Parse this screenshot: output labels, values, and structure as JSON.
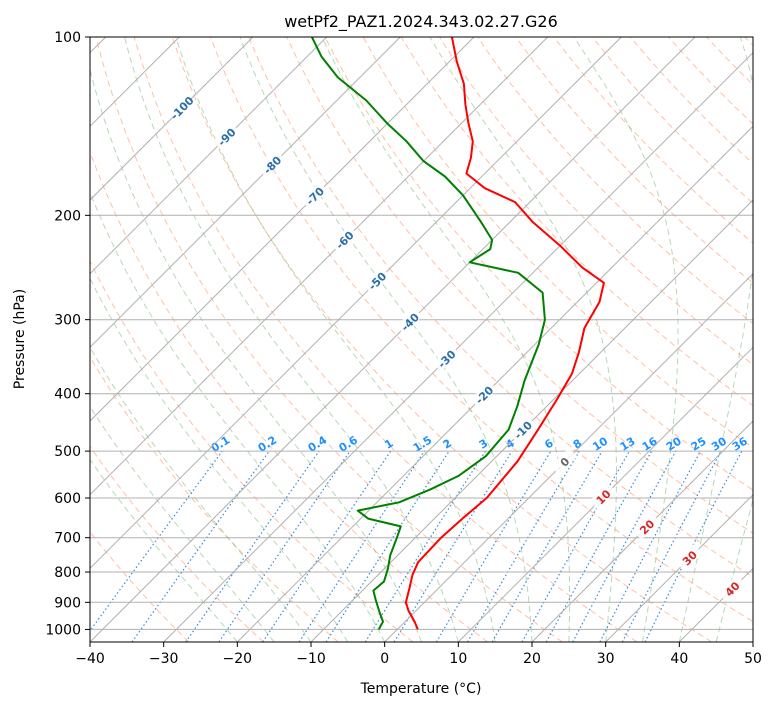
{
  "chart_data": {
    "type": "line",
    "title": "wetPf2_PAZ1.2024.343.02.27.G26",
    "xlabel": "Temperature (°C)",
    "ylabel": "Pressure (hPa)",
    "xlim": [
      -40,
      50
    ],
    "ylim": [
      1050,
      100
    ],
    "y_scale": "log",
    "x_ticks": [
      -40,
      -30,
      -20,
      -10,
      0,
      10,
      20,
      30,
      40,
      50
    ],
    "x_tick_labels": [
      "−40",
      "−30",
      "−20",
      "−10",
      "0",
      "10",
      "20",
      "30",
      "40",
      "50"
    ],
    "y_ticks": [
      100,
      200,
      300,
      400,
      500,
      600,
      700,
      800,
      900,
      1000
    ],
    "y_tick_labels": [
      "100",
      "200",
      "300",
      "400",
      "500",
      "600",
      "700",
      "800",
      "900",
      "1000"
    ],
    "grid": true,
    "skew": true,
    "series": [
      {
        "color": "#ff0000",
        "points": [
          [
            2.8,
            1000
          ],
          [
            1.3,
            970
          ],
          [
            -1,
            930
          ],
          [
            -2.5,
            900
          ],
          [
            -4,
            850
          ],
          [
            -5.3,
            810
          ],
          [
            -6.3,
            770
          ],
          [
            -6.5,
            700
          ],
          [
            -6.2,
            650
          ],
          [
            -5.7,
            600
          ],
          [
            -6.5,
            520
          ],
          [
            -8,
            460
          ],
          [
            -9.5,
            410
          ],
          [
            -11,
            370
          ],
          [
            -13,
            340
          ],
          [
            -15.5,
            310
          ],
          [
            -17,
            280
          ],
          [
            -19,
            260
          ],
          [
            -24,
            245
          ],
          [
            -30,
            225
          ],
          [
            -37,
            205
          ],
          [
            -42,
            190
          ],
          [
            -48,
            180
          ],
          [
            -52.5,
            170
          ],
          [
            -54,
            160
          ],
          [
            -56,
            150
          ],
          [
            -59,
            140
          ],
          [
            -62,
            130
          ],
          [
            -65,
            120
          ],
          [
            -69,
            110
          ],
          [
            -73,
            100
          ]
        ]
      },
      {
        "color": "#008000",
        "points": [
          [
            -2.5,
            1000
          ],
          [
            -3,
            970
          ],
          [
            -5,
            930
          ],
          [
            -7,
            890
          ],
          [
            -8.5,
            860
          ],
          [
            -8.3,
            830
          ],
          [
            -9.5,
            790
          ],
          [
            -11,
            750
          ],
          [
            -12.5,
            700
          ],
          [
            -13.5,
            670
          ],
          [
            -19,
            650
          ],
          [
            -21.5,
            630
          ],
          [
            -17,
            610
          ],
          [
            -14.5,
            580
          ],
          [
            -12.5,
            550
          ],
          [
            -11.5,
            510
          ],
          [
            -12,
            460
          ],
          [
            -14,
            420
          ],
          [
            -16.5,
            380
          ],
          [
            -19.5,
            330
          ],
          [
            -22,
            300
          ],
          [
            -26,
            270
          ],
          [
            -32,
            250
          ],
          [
            -40,
            240
          ],
          [
            -39,
            228
          ],
          [
            -40,
            220
          ],
          [
            -44,
            205
          ],
          [
            -50,
            185
          ],
          [
            -55,
            172
          ],
          [
            -60,
            162
          ],
          [
            -65,
            150
          ],
          [
            -70,
            140
          ],
          [
            -76,
            128
          ],
          [
            -83,
            117
          ],
          [
            -88,
            108
          ],
          [
            -92,
            100
          ]
        ]
      }
    ],
    "isotherm_labels": [
      "-100",
      "-90",
      "-80",
      "-70",
      "-60",
      "-50",
      "-40",
      "-30",
      "-20",
      "-10",
      "0",
      "10",
      "20",
      "30",
      "40"
    ],
    "mixing_ratio_labels": [
      "0.1",
      "0.2",
      "0.4",
      "0.6",
      "1",
      "1.5",
      "2",
      "3",
      "4",
      "6",
      "8",
      "10",
      "13",
      "16",
      "20",
      "25",
      "30",
      "36"
    ],
    "colors": {
      "temperature": "#ff0000",
      "dewpoint": "#008000",
      "dry_adiabat": "#ff8c5a",
      "moist_adiabat": "#5aaa5a",
      "mixing_ratio": "#1e7fd6",
      "isotherm_label": "#2a6fa8",
      "isotherm_label_warm": "#d62728"
    }
  }
}
